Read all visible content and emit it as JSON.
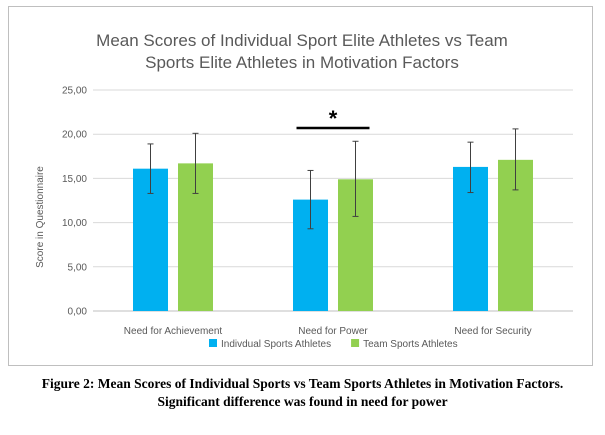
{
  "chart_data": {
    "type": "bar",
    "title_lines": [
      "Mean Scores of Individual Sport Elite Athletes vs Team",
      "Sports Elite Athletes in Motivation Factors"
    ],
    "ylabel": "Score in Questionnaire",
    "xlabel": "",
    "ylim": [
      0,
      25
    ],
    "yticks": [
      "0,00",
      "5,00",
      "10,00",
      "15,00",
      "20,00",
      "25,00"
    ],
    "ytick_values": [
      0,
      5,
      10,
      15,
      20,
      25
    ],
    "categories": [
      "Need for Achievement",
      "Need for Power",
      "Need for Security"
    ],
    "series": [
      {
        "name": "Indivdual Sports Athletes",
        "color": "#00b0f0",
        "values": [
          16.1,
          12.6,
          16.3
        ],
        "error_low": [
          13.3,
          9.3,
          13.4
        ],
        "error_high": [
          18.9,
          15.9,
          19.1
        ]
      },
      {
        "name": "Team Sports Athletes",
        "color": "#92d050",
        "values": [
          16.7,
          14.9,
          17.1
        ],
        "error_low": [
          13.3,
          10.7,
          13.7
        ],
        "error_high": [
          20.1,
          19.2,
          20.6
        ]
      }
    ],
    "significance": {
      "category_index": 1,
      "marker": "*"
    },
    "grid": true,
    "legend_position": "bottom"
  },
  "caption": {
    "line1": "Figure 2: Mean Scores of Individual Sports vs Team Sports Athletes in Motivation Factors.",
    "line2": "Significant difference was found in need for power"
  }
}
